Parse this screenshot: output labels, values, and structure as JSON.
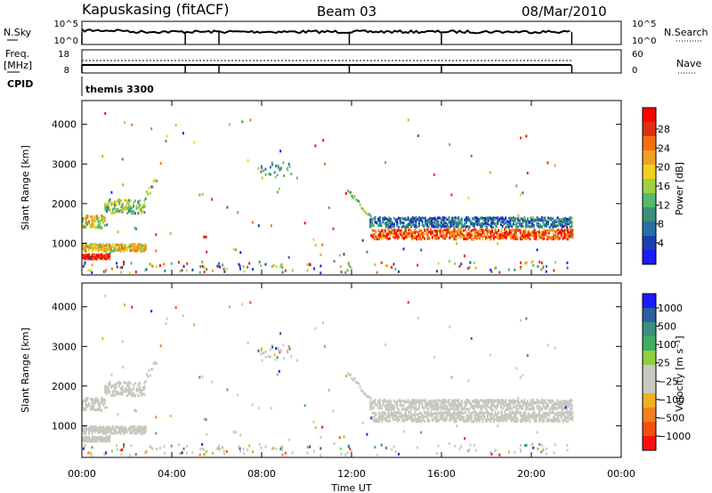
{
  "header": {
    "station": "Kapuskasing (fitACF)",
    "beam": "Beam 03",
    "date": "08/Mar/2010"
  },
  "left_labels": {
    "nsky": "N.Sky",
    "freq": "Freq.",
    "mhz": "[MHz]",
    "cpid": "CPID"
  },
  "right_labels": {
    "nsearch": "N.Search",
    "nave": "Nave"
  },
  "cpid_value": "themis 3300",
  "time_axis": {
    "label": "Time UT",
    "ticks": [
      "00:00",
      "04:00",
      "08:00",
      "12:00",
      "16:00",
      "20:00",
      "00:00"
    ]
  },
  "colors": {
    "power": [
      "#1a1aff",
      "#1a3fb0",
      "#2a6fa0",
      "#3a8f7a",
      "#57b870",
      "#9fd040",
      "#f0d020",
      "#f0a020",
      "#f07010",
      "#e03010",
      "#ff0000"
    ],
    "velocity": [
      "#ff1010",
      "#f05010",
      "#f08020",
      "#f0b020",
      "#c8c8c0",
      "#c8c8c0",
      "#90d040",
      "#40b060",
      "#3a8f7a",
      "#2a5fa0",
      "#1a1aff"
    ],
    "gray": "#c8c8c0"
  },
  "chart_data": [
    {
      "type": "line",
      "name": "N.Sky",
      "y_ticks": [
        "10^5",
        "10^0"
      ],
      "x_range": [
        0,
        24
      ],
      "base_level": 0.55,
      "drop_times": [
        0.0,
        4.6,
        6.1,
        11.9,
        16.0,
        21.8
      ]
    },
    {
      "type": "line",
      "name": "Freq.",
      "y_ticks_left": [
        "18",
        "8"
      ],
      "y_ticks_right": [
        "60",
        "0"
      ],
      "x_range": [
        0,
        24
      ]
    },
    {
      "type": "heatmap",
      "name": "Power",
      "ylabel": "Slant Range [km]",
      "colorbar_label": "Power [dB]",
      "colorbar_ticks": [
        "28",
        "24",
        "20",
        "16",
        "12",
        "8",
        "4"
      ],
      "y_ticks": [
        "4000",
        "3000",
        "2000",
        "1000"
      ],
      "x_range": [
        0,
        24
      ],
      "y_range": [
        200,
        4600
      ],
      "features": [
        {
          "t": [
            0.0,
            1.0
          ],
          "r": [
            1380,
            1700
          ],
          "level": 0.55
        },
        {
          "t": [
            1.0,
            2.8
          ],
          "r": [
            1750,
            2100
          ],
          "level": 0.45
        },
        {
          "t": [
            0.0,
            2.8
          ],
          "r": [
            800,
            980
          ],
          "level": 0.6
        },
        {
          "t": [
            0.0,
            1.2
          ],
          "r": [
            600,
            720
          ],
          "level": 0.9
        },
        {
          "t": [
            12.8,
            21.8
          ],
          "r": [
            1400,
            1650
          ],
          "level": 0.25
        },
        {
          "t": [
            12.9,
            21.8
          ],
          "r": [
            1100,
            1350
          ],
          "level": 0.8
        }
      ]
    },
    {
      "type": "heatmap",
      "name": "Velocity",
      "ylabel": "Slant Range [km]",
      "colorbar_label": "Velocity [m s⁻¹]",
      "colorbar_ticks": [
        "1000",
        "500",
        "100",
        "25",
        "−25",
        "−100",
        "−500",
        "−1000"
      ],
      "y_ticks": [
        "4000",
        "3000",
        "2000",
        "1000"
      ],
      "x_range": [
        0,
        24
      ],
      "y_range": [
        200,
        4600
      ]
    }
  ]
}
